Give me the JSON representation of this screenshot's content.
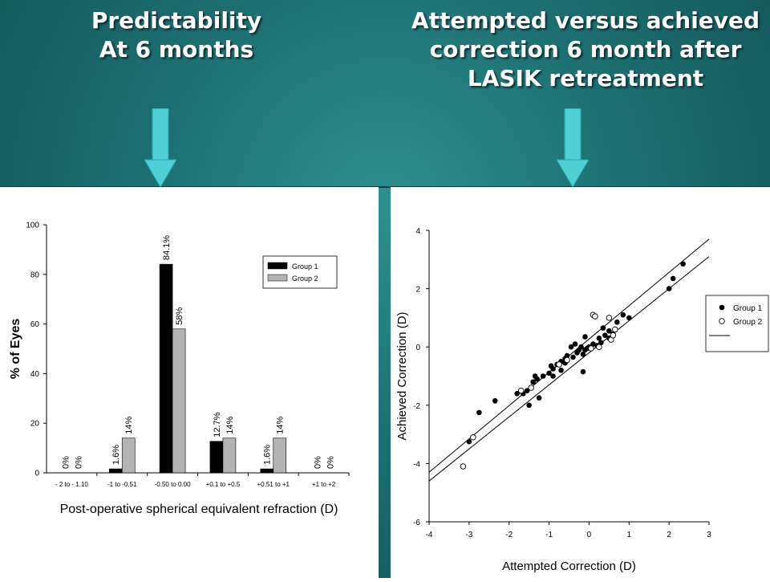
{
  "titles": {
    "left": [
      "Predictability",
      "At 6 months"
    ],
    "right": [
      "Attempted versus achieved",
      "correction 6 month after",
      "LASIK retreatment"
    ]
  },
  "colors": {
    "arrow": "#4fd0d4",
    "group1": "#000000",
    "group2": "#b3b3b3"
  },
  "chart_data": [
    {
      "type": "bar",
      "xlabel": "Post-operative spherical equivalent refraction (D)",
      "ylabel": "% of Eyes",
      "ylim": [
        0,
        100
      ],
      "yticks": [
        0,
        20,
        40,
        60,
        80,
        100
      ],
      "categories": [
        "- 2  to - 1.10",
        "-1 to -0.51",
        "-0.50 to 0.00",
        "+0.1 to +0.5",
        "+0.51 to +1",
        "+1 to +2"
      ],
      "series": [
        {
          "name": "Group 1",
          "values": [
            0,
            1.6,
            84.1,
            12.7,
            1.6,
            0
          ],
          "labels": [
            "0%",
            "1.6%",
            "84.1%",
            "12.7%",
            "1.6%",
            "0%"
          ]
        },
        {
          "name": "Group 2",
          "values": [
            0,
            14,
            58,
            14,
            14,
            0
          ],
          "labels": [
            "0%",
            "14%",
            "58%",
            "14%",
            "14%",
            "0%"
          ]
        }
      ],
      "legend": "top-right",
      "grid": false
    },
    {
      "type": "scatter",
      "xlabel": "Attempted Correction (D)",
      "ylabel": "Achieved Correction (D)",
      "xlim": [
        -4,
        3
      ],
      "ylim": [
        -6,
        4
      ],
      "xticks": [
        -4,
        -3,
        -2,
        -1,
        0,
        1,
        2,
        3
      ],
      "yticks": [
        -6,
        -4,
        -2,
        0,
        2,
        4
      ],
      "legend": "right",
      "legend_entries": [
        "Group 1",
        "Group 2"
      ],
      "series": [
        {
          "name": "Group 1",
          "marker": "filled-circle",
          "points": [
            [
              -3.0,
              -3.25
            ],
            [
              -2.75,
              -2.25
            ],
            [
              -2.35,
              -1.85
            ],
            [
              -1.8,
              -1.6
            ],
            [
              -1.65,
              -1.6
            ],
            [
              -1.55,
              -1.5
            ],
            [
              -1.5,
              -2.0
            ],
            [
              -1.4,
              -1.2
            ],
            [
              -1.35,
              -1.0
            ],
            [
              -1.25,
              -1.75
            ],
            [
              -1.3,
              -1.1
            ],
            [
              -1.15,
              -1.0
            ],
            [
              -1.0,
              -0.9
            ],
            [
              -0.95,
              -0.65
            ],
            [
              -0.9,
              -0.75
            ],
            [
              -0.9,
              -1.0
            ],
            [
              -0.8,
              -0.6
            ],
            [
              -0.7,
              -0.5
            ],
            [
              -0.7,
              -0.8
            ],
            [
              -0.6,
              -0.4
            ],
            [
              -0.6,
              -0.55
            ],
            [
              -0.55,
              -0.3
            ],
            [
              -0.45,
              0.0
            ],
            [
              -0.4,
              -0.35
            ],
            [
              -0.35,
              0.1
            ],
            [
              -0.3,
              -0.2
            ],
            [
              -0.25,
              -0.1
            ],
            [
              -0.2,
              0.0
            ],
            [
              -0.15,
              -0.25
            ],
            [
              -0.1,
              -0.1
            ],
            [
              -0.1,
              0.35
            ],
            [
              -0.05,
              -0.05
            ],
            [
              0.0,
              0.0
            ],
            [
              0.1,
              0.1
            ],
            [
              0.2,
              0.05
            ],
            [
              0.25,
              0.3
            ],
            [
              0.3,
              0.15
            ],
            [
              0.35,
              0.65
            ],
            [
              0.4,
              0.4
            ],
            [
              0.5,
              0.3
            ],
            [
              0.5,
              0.55
            ],
            [
              0.6,
              0.45
            ],
            [
              0.7,
              0.85
            ],
            [
              0.85,
              1.1
            ],
            [
              1.0,
              1.0
            ],
            [
              2.0,
              2.0
            ],
            [
              2.1,
              2.35
            ],
            [
              2.35,
              2.85
            ],
            [
              -0.15,
              -0.85
            ]
          ]
        },
        {
          "name": "Group 2",
          "marker": "open-circle",
          "points": [
            [
              -3.15,
              -4.1
            ],
            [
              -2.9,
              -3.1
            ],
            [
              -1.7,
              -1.5
            ],
            [
              -1.45,
              -1.4
            ],
            [
              -0.75,
              -0.6
            ],
            [
              -0.55,
              -0.45
            ],
            [
              0.05,
              -0.05
            ],
            [
              0.1,
              1.1
            ],
            [
              0.15,
              1.05
            ],
            [
              0.25,
              0.0
            ],
            [
              0.5,
              1.0
            ],
            [
              0.55,
              0.25
            ],
            [
              0.6,
              0.4
            ],
            [
              0.65,
              0.6
            ]
          ]
        }
      ],
      "fit_lines": [
        {
          "from": [
            -4.0,
            -4.3
          ],
          "to": [
            3.0,
            3.7
          ]
        },
        {
          "from": [
            -4.0,
            -4.6
          ],
          "to": [
            3.0,
            3.1
          ]
        }
      ]
    }
  ]
}
